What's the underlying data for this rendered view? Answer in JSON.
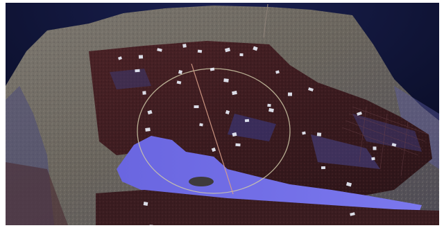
{
  "scene": {
    "kind": "3d-point-cloud-viewport",
    "colors": {
      "background": "#0b0f2a",
      "terrain": "#6f6a63",
      "structure": "#3a1a1d",
      "water": "#6f6fe6",
      "markers": "#e8eef8",
      "trackball": "#cfc9a8",
      "line": "#d9a08a"
    },
    "marker_count": 40
  }
}
